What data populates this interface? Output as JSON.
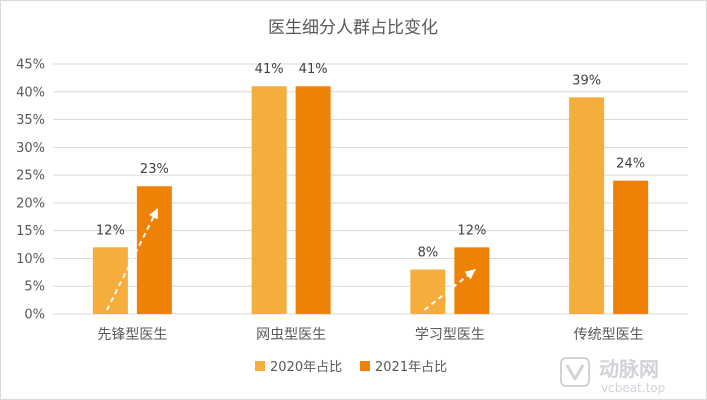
{
  "chart_data": {
    "type": "bar",
    "title": "医生细分人群占比变化",
    "categories": [
      "先锋型医生",
      "网虫型医生",
      "学习型医生",
      "传统型医生"
    ],
    "series": [
      {
        "name": "2020年占比",
        "values": [
          12,
          41,
          8,
          39
        ],
        "labels": [
          "12%",
          "41%",
          "8%",
          "39%"
        ]
      },
      {
        "name": "2021年占比",
        "values": [
          23,
          41,
          12,
          24
        ],
        "labels": [
          "23%",
          "41%",
          "12%",
          "24%"
        ]
      }
    ],
    "ylim": [
      0,
      45
    ],
    "yticks": [
      0,
      5,
      10,
      15,
      20,
      25,
      30,
      35,
      40,
      45
    ],
    "ytick_labels": [
      "0%",
      "5%",
      "10%",
      "15%",
      "20%",
      "25%",
      "30%",
      "35%",
      "40%",
      "45%"
    ],
    "xlabel": "",
    "ylabel": "",
    "grid": true,
    "legend_position": "bottom",
    "arrows_on_categories": [
      "先锋型医生",
      "学习型医生"
    ],
    "colors": {
      "series": [
        "#F5AD3C",
        "#EE8207"
      ],
      "grid": "#D9D9D9",
      "axis_text": "#595959",
      "title": "#595959",
      "arrow": "#ffffff"
    }
  },
  "watermark": {
    "logo_text": "动脉网",
    "url_text": "vcbeat.top"
  }
}
